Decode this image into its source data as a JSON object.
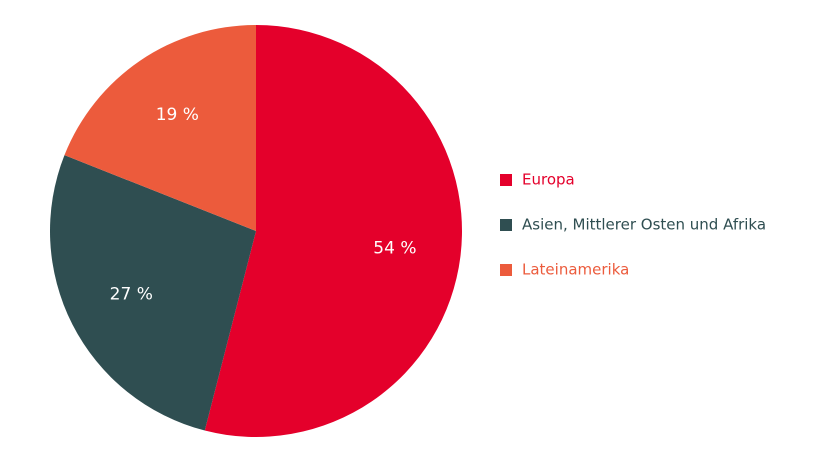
{
  "chart_data": {
    "type": "pie",
    "categories": [
      "Europa",
      "Asien, Mittlerer Osten und Afrika",
      "Lateinamerika"
    ],
    "values": [
      54,
      27,
      19
    ],
    "value_labels": [
      "54 %",
      "27 %",
      "19 %"
    ],
    "colors": [
      "#e4002b",
      "#2f4e51",
      "#ec5b3c"
    ]
  }
}
